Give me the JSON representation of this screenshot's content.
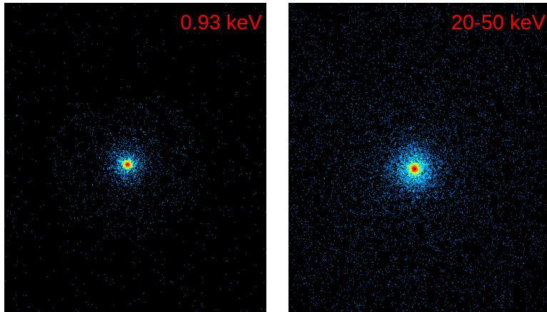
{
  "panels": [
    {
      "label": "0.93 keV",
      "label_color": "#ff0000",
      "background": "#000000",
      "colormap": "jet"
    },
    {
      "label": "20-50 keV",
      "label_color": "#ff0000",
      "background": "#000000",
      "colormap": "jet"
    }
  ]
}
